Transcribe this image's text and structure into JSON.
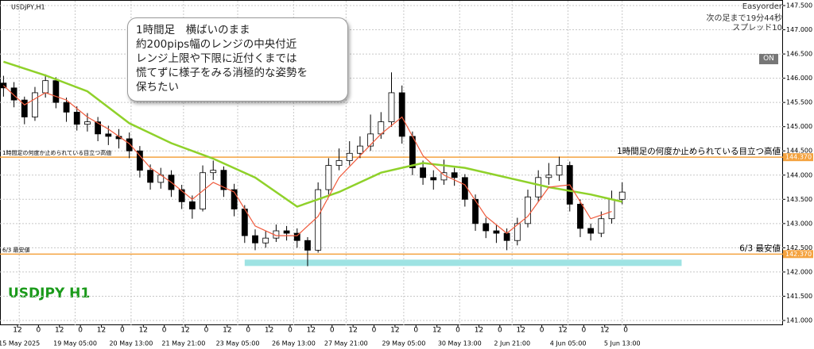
{
  "chart_data": {
    "type": "candlestick",
    "title": "USDJPY,H1",
    "watermark": "USDJPY H1",
    "x": [
      0,
      6,
      12,
      18,
      24,
      30,
      36,
      42,
      48,
      54,
      60,
      66,
      72,
      78,
      84,
      90,
      96,
      102,
      108,
      114,
      120,
      126,
      132,
      138,
      144,
      150,
      156,
      162,
      168,
      174,
      180,
      186,
      192,
      198,
      204,
      210,
      216,
      222,
      228,
      234,
      240,
      246,
      252,
      258,
      264,
      270,
      276,
      282,
      288,
      294,
      300,
      306,
      312,
      318,
      324,
      330,
      336,
      342,
      348,
      354
    ],
    "open": [
      145.9,
      145.8,
      145.55,
      145.2,
      145.7,
      145.95,
      145.5,
      145.3,
      145.05,
      145.1,
      144.85,
      144.8,
      144.75,
      144.5,
      144.1,
      143.85,
      144.0,
      143.7,
      143.45,
      143.3,
      144.05,
      144.1,
      143.7,
      143.3,
      142.75,
      142.6,
      142.7,
      142.85,
      142.8,
      142.65,
      142.45,
      143.7,
      144.2,
      144.3,
      144.45,
      144.6,
      144.85,
      145.1,
      145.7,
      144.8,
      144.15,
      143.95,
      143.9,
      144.05,
      143.95,
      143.5,
      143.0,
      142.85,
      142.8,
      142.65,
      143.0,
      143.55,
      143.95,
      144.0,
      144.2,
      143.4,
      142.9,
      142.8,
      143.1,
      143.5
    ],
    "high": [
      146.05,
      145.92,
      145.62,
      145.82,
      146.08,
      146.02,
      145.6,
      145.42,
      145.28,
      145.2,
      145.02,
      144.95,
      144.88,
      144.6,
      144.22,
      144.15,
      144.1,
      143.8,
      143.58,
      144.2,
      144.3,
      144.18,
      143.82,
      143.38,
      142.88,
      142.85,
      142.98,
      142.95,
      142.9,
      142.72,
      143.85,
      144.35,
      144.55,
      144.7,
      144.8,
      145.25,
      145.3,
      146.12,
      145.85,
      144.9,
      144.3,
      144.1,
      144.32,
      144.15,
      144.02,
      143.6,
      143.12,
      142.98,
      142.9,
      143.12,
      143.7,
      144.1,
      144.25,
      144.38,
      144.28,
      143.5,
      143.0,
      143.25,
      143.68,
      143.85
    ],
    "low": [
      145.62,
      145.4,
      145.05,
      145.12,
      145.6,
      145.38,
      145.1,
      144.92,
      144.9,
      144.7,
      144.62,
      144.55,
      144.35,
      143.95,
      143.7,
      143.72,
      143.55,
      143.3,
      143.1,
      143.25,
      143.9,
      143.55,
      143.15,
      142.6,
      142.45,
      142.5,
      142.62,
      142.65,
      142.5,
      142.12,
      142.4,
      143.6,
      144.1,
      144.2,
      144.35,
      144.5,
      144.75,
      145.0,
      144.65,
      144.0,
      143.8,
      143.7,
      143.8,
      143.78,
      143.35,
      142.85,
      142.7,
      142.6,
      142.45,
      142.55,
      142.92,
      143.45,
      143.8,
      143.88,
      143.25,
      142.72,
      142.65,
      142.72,
      143.0,
      143.4
    ],
    "close": [
      145.8,
      145.55,
      145.2,
      145.7,
      145.95,
      145.5,
      145.3,
      145.05,
      145.1,
      144.85,
      144.8,
      144.75,
      144.5,
      144.1,
      143.85,
      144.0,
      143.7,
      143.45,
      143.3,
      144.05,
      144.1,
      143.7,
      143.3,
      142.75,
      142.6,
      142.7,
      142.85,
      142.8,
      142.65,
      142.45,
      143.7,
      144.2,
      144.3,
      144.45,
      144.6,
      144.85,
      145.1,
      145.7,
      144.8,
      144.15,
      143.95,
      143.9,
      144.05,
      143.95,
      143.5,
      143.0,
      142.85,
      142.8,
      142.65,
      143.0,
      143.55,
      143.95,
      144.0,
      144.2,
      143.4,
      142.9,
      142.8,
      143.1,
      143.5,
      143.65
    ],
    "up_color": "#ffffff",
    "down_color": "#000000",
    "series": [
      {
        "color": "#8fd12a",
        "x": [
          0,
          24,
          48,
          72,
          96,
          120,
          144,
          168,
          192,
          216,
          240,
          264,
          288,
          312,
          336,
          354
        ],
        "values": [
          146.34,
          146.06,
          145.73,
          145.07,
          144.66,
          144.34,
          143.95,
          143.35,
          143.65,
          144.05,
          144.25,
          144.15,
          143.95,
          143.75,
          143.6,
          143.45
        ]
      },
      {
        "color": "#f05a3c",
        "x": [
          0,
          12,
          24,
          36,
          48,
          60,
          72,
          84,
          96,
          108,
          120,
          132,
          144,
          156,
          168,
          180,
          192,
          204,
          216,
          228,
          240,
          252,
          264,
          276,
          288,
          300,
          312,
          324,
          336,
          348
        ],
        "values": [
          145.85,
          145.45,
          145.7,
          145.55,
          145.2,
          144.95,
          144.65,
          144.15,
          143.85,
          143.5,
          143.85,
          143.65,
          142.95,
          142.75,
          142.75,
          143.15,
          143.95,
          144.4,
          144.85,
          145.2,
          144.4,
          144.0,
          143.8,
          143.15,
          142.8,
          143.15,
          143.75,
          143.8,
          143.1,
          143.25
        ]
      }
    ],
    "xlim": [
      -2,
      446
    ],
    "ylim": [
      141.0,
      147.5
    ],
    "grid": true,
    "xticks": [
      {
        "value": 8,
        "label": "12"
      },
      {
        "value": 20,
        "label": "0"
      },
      {
        "value": 32,
        "label": "12"
      },
      {
        "value": 44,
        "label": "0"
      },
      {
        "value": 56,
        "label": "12"
      },
      {
        "value": 68,
        "label": "0"
      },
      {
        "value": 80,
        "label": "12"
      },
      {
        "value": 92,
        "label": "0"
      },
      {
        "value": 104,
        "label": "12"
      },
      {
        "value": 116,
        "label": "0"
      },
      {
        "value": 128,
        "label": "12"
      },
      {
        "value": 140,
        "label": "0"
      },
      {
        "value": 152,
        "label": "12"
      },
      {
        "value": 164,
        "label": "0"
      },
      {
        "value": 176,
        "label": "12"
      },
      {
        "value": 188,
        "label": "0"
      },
      {
        "value": 200,
        "label": "12"
      },
      {
        "value": 212,
        "label": "0"
      },
      {
        "value": 224,
        "label": "12"
      },
      {
        "value": 236,
        "label": "0"
      },
      {
        "value": 248,
        "label": "12"
      },
      {
        "value": 260,
        "label": "0"
      },
      {
        "value": 272,
        "label": "12"
      },
      {
        "value": 284,
        "label": "0"
      },
      {
        "value": 296,
        "label": "12"
      },
      {
        "value": 308,
        "label": "0"
      },
      {
        "value": 320,
        "label": "12"
      },
      {
        "value": 332,
        "label": "0"
      },
      {
        "value": 344,
        "label": "12"
      },
      {
        "value": 356,
        "label": "0"
      }
    ],
    "date_ticks": [
      {
        "value": 9,
        "label": "15 May 2025"
      },
      {
        "value": 41,
        "label": "19 May 05:00"
      },
      {
        "value": 73,
        "label": "20 May 13:00"
      },
      {
        "value": 103,
        "label": "21 May 21:00"
      },
      {
        "value": 134,
        "label": "23 May 05:00"
      },
      {
        "value": 166,
        "label": "26 May 13:00"
      },
      {
        "value": 196,
        "label": "27 May 21:00"
      },
      {
        "value": 229,
        "label": "29 May 05:00"
      },
      {
        "value": 261,
        "label": "30 May 13:00"
      },
      {
        "value": 291,
        "label": "2 Jun 21:00"
      },
      {
        "value": 323,
        "label": "4 Jun 05:00"
      },
      {
        "value": 354,
        "label": "5 Jun 13:00"
      }
    ],
    "yticks": [
      {
        "value": 141.0,
        "label": "141.000"
      },
      {
        "value": 141.5,
        "label": "141.500"
      },
      {
        "value": 142.0,
        "label": "142.000"
      },
      {
        "value": 142.5,
        "label": "142.500"
      },
      {
        "value": 143.0,
        "label": "143.000"
      },
      {
        "value": 143.5,
        "label": "143.500"
      },
      {
        "value": 144.0,
        "label": "144.000"
      },
      {
        "value": 144.5,
        "label": "144.500"
      },
      {
        "value": 145.0,
        "label": "145.000"
      },
      {
        "value": 145.5,
        "label": "145.500"
      },
      {
        "value": 146.0,
        "label": "146.000"
      },
      {
        "value": 146.5,
        "label": "146.500"
      },
      {
        "value": 147.0,
        "label": "147.000"
      },
      {
        "value": 147.5,
        "label": "147.500"
      }
    ],
    "levels": [
      {
        "value": 144.37,
        "value_label": "144.370",
        "label": "1時間足の何度か止められている目立つ高値",
        "color": "#f4a340"
      },
      {
        "value": 142.37,
        "value_label": "142.370",
        "label": "6/3 最安値",
        "color": "#f4a340"
      }
    ],
    "band": {
      "from": 138,
      "to": 388,
      "value": 142.19,
      "color": "#9ee3e3"
    }
  },
  "annotation": {
    "lines": [
      "1時間足　横ばいのまま",
      "約200pips幅のレンジの中央付近",
      "レンジ上限や下限に近付くまでは",
      "慌てずに様子をみる消極的な姿勢を",
      "保ちたい"
    ]
  },
  "info": {
    "broker": "Easyorder",
    "countdown": "次の足まで19分44秒",
    "spread": "スプレッド10"
  },
  "button": "ON"
}
